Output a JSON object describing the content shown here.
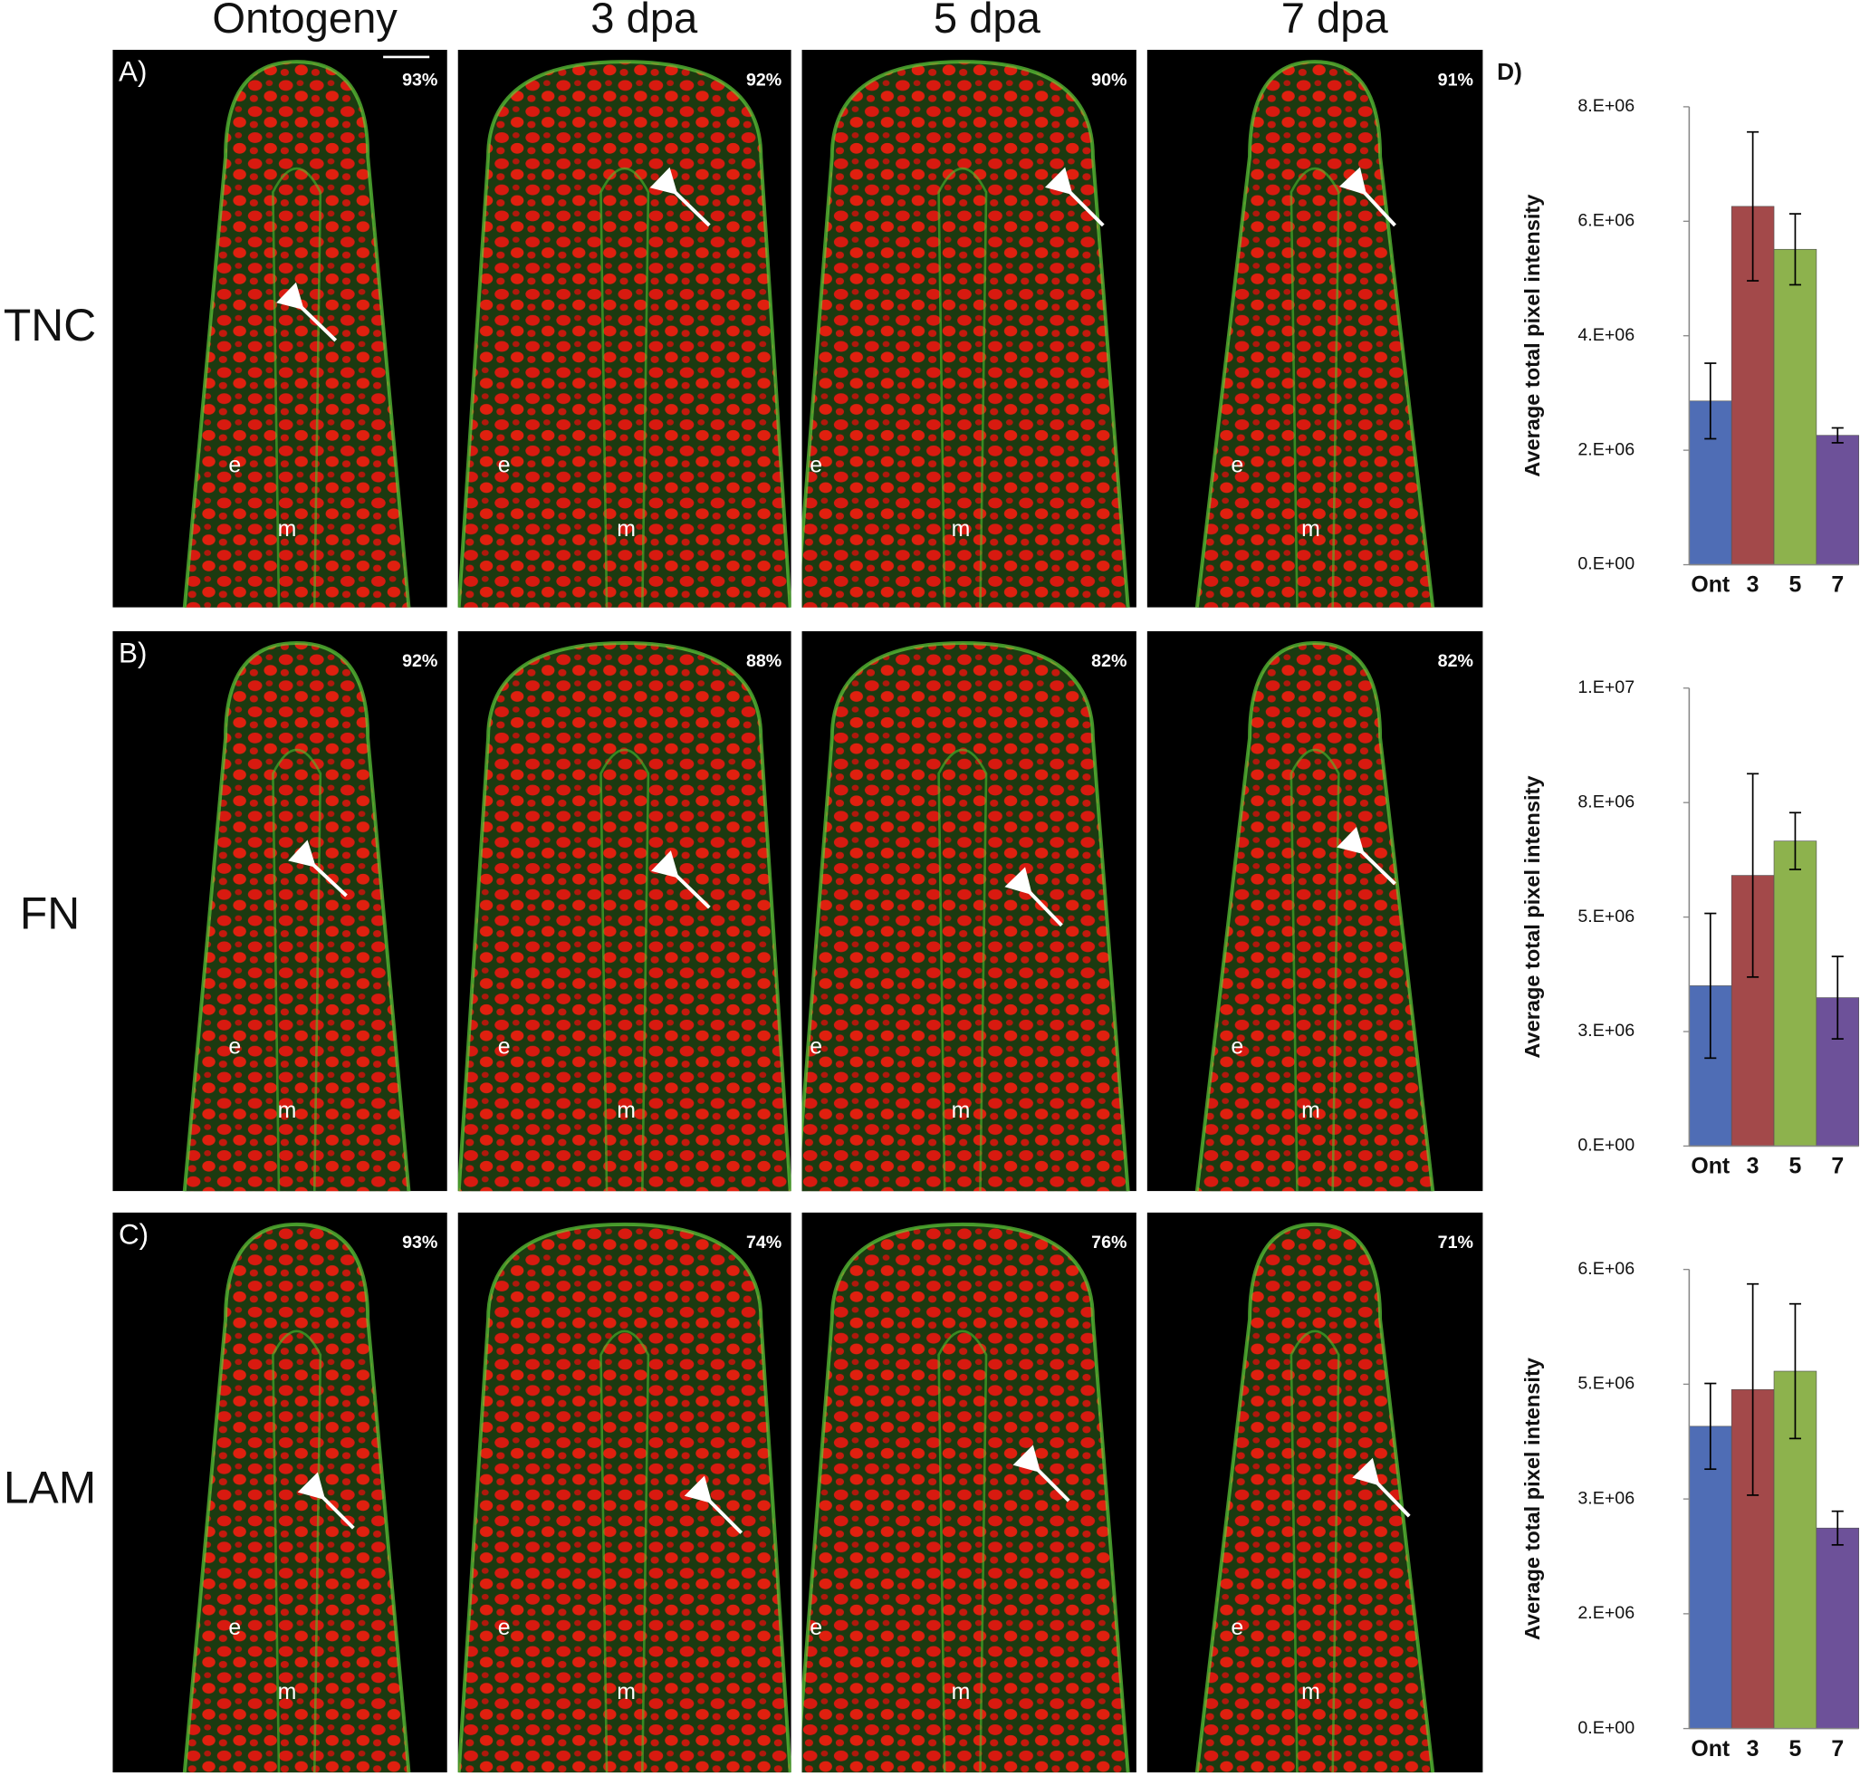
{
  "columns": [
    "Ontogeny",
    "3 dpa",
    "5 dpa",
    "7 dpa"
  ],
  "rows": [
    {
      "label": "TNC",
      "panel": "A)",
      "percents": [
        "93%",
        "92%",
        "90%",
        "91%"
      ]
    },
    {
      "label": "FN",
      "panel": "B)",
      "percents": [
        "92%",
        "88%",
        "82%",
        "82%"
      ]
    },
    {
      "label": "LAM",
      "panel": "C)",
      "percents": [
        "93%",
        "74%",
        "76%",
        "71%"
      ]
    }
  ],
  "tissue_labels": {
    "epidermis": "e",
    "mesenchyme": "m"
  },
  "panel_d": "D)",
  "chart_data": [
    {
      "type": "bar",
      "ylabel": "Average total pixel intensity",
      "categories": [
        "Ont",
        "3",
        "5",
        "7"
      ],
      "values": [
        2860000,
        6260000,
        5510000,
        2260000
      ],
      "errors": [
        660000,
        1300000,
        620000,
        130000
      ],
      "colors": [
        "#4f6db5",
        "#a3494a",
        "#8db24d",
        "#6d5199"
      ],
      "ylim": [
        0,
        8000000
      ],
      "yticks": [
        {
          "value": 0,
          "label": "0.E+00"
        },
        {
          "value": 2000000,
          "label": "2.E+06"
        },
        {
          "value": 4000000,
          "label": "4.E+06"
        },
        {
          "value": 6000000,
          "label": "6.E+06"
        },
        {
          "value": 8000000,
          "label": "8.E+06"
        }
      ]
    },
    {
      "type": "bar",
      "ylabel": "Average total pixel intensity",
      "categories": [
        "Ont",
        "3",
        "5",
        "7"
      ],
      "values": [
        3500000,
        5910000,
        6660000,
        3240000
      ],
      "errors": [
        1580000,
        2220000,
        620000,
        900000
      ],
      "colors": [
        "#4f6db5",
        "#a3494a",
        "#8db24d",
        "#6d5199"
      ],
      "ylim": [
        0,
        10000000
      ],
      "yticks": [
        {
          "value": 0,
          "label": "0.E+00"
        },
        {
          "value": 2500000,
          "label": "3.E+06"
        },
        {
          "value": 5000000,
          "label": "5.E+06"
        },
        {
          "value": 7500000,
          "label": "8.E+06"
        },
        {
          "value": 10000000,
          "label": "1.E+07"
        }
      ]
    },
    {
      "type": "bar",
      "ylabel": "Average total pixel intensity",
      "categories": [
        "Ont",
        "3",
        "5",
        "7"
      ],
      "values": [
        3950000,
        4430000,
        4670000,
        2620000
      ],
      "errors": [
        560000,
        1380000,
        880000,
        220000
      ],
      "colors": [
        "#4f6db5",
        "#a3494a",
        "#8db24d",
        "#6d5199"
      ],
      "ylim": [
        0,
        6000000
      ],
      "yticks": [
        {
          "value": 0,
          "label": "0.E+00"
        },
        {
          "value": 1500000,
          "label": "2.E+06"
        },
        {
          "value": 3000000,
          "label": "3.E+06"
        },
        {
          "value": 4500000,
          "label": "5.E+06"
        },
        {
          "value": 6000000,
          "label": "6.E+06"
        }
      ]
    }
  ]
}
